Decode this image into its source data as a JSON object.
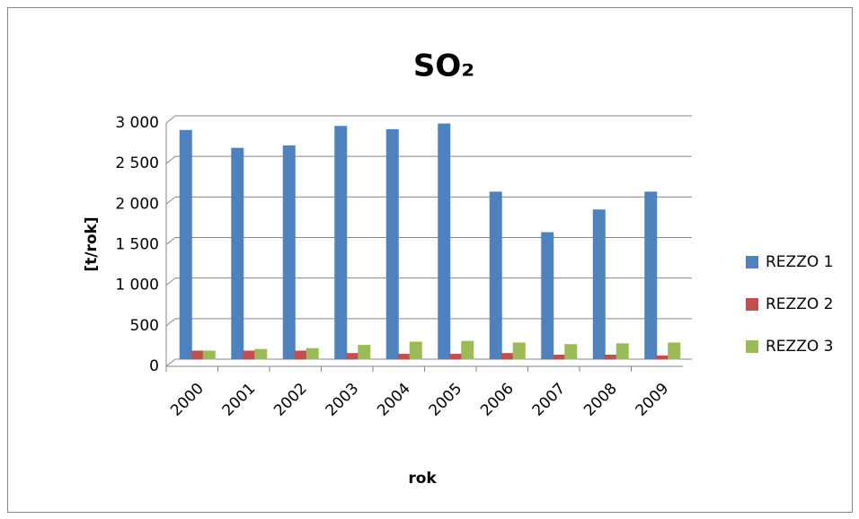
{
  "chart_data": {
    "type": "bar",
    "title": "SO₂",
    "x_label": "rok",
    "y_label": "[t/rok]",
    "categories": [
      "2000",
      "2001",
      "2002",
      "2003",
      "2004",
      "2005",
      "2006",
      "2007",
      "2008",
      "2009"
    ],
    "series": [
      {
        "name": "REZZO 1",
        "color": "#4f81bd",
        "values": [
          2820,
          2600,
          2630,
          2870,
          2830,
          2900,
          2060,
          1560,
          1840,
          2060
        ]
      },
      {
        "name": "REZZO 2",
        "color": "#c0504d",
        "values": [
          100,
          100,
          100,
          70,
          60,
          60,
          70,
          50,
          50,
          40
        ]
      },
      {
        "name": "REZZO 3",
        "color": "#9bbb59",
        "values": [
          100,
          120,
          130,
          170,
          210,
          220,
          200,
          180,
          190,
          200
        ]
      }
    ],
    "ylim": [
      0,
      3000
    ],
    "yticks": [
      0,
      500,
      {
        "value": 1000,
        "label": "1 000"
      },
      {
        "value": 1500,
        "label": "1 500"
      },
      {
        "value": 2000,
        "label": "2 000"
      },
      {
        "value": 2500,
        "label": "2 500"
      },
      {
        "value": 3000,
        "label": "3 000"
      }
    ],
    "grid": true,
    "legend": "right"
  }
}
